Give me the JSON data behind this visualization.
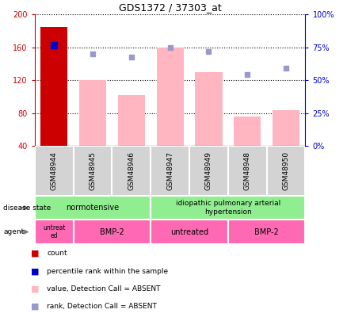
{
  "title": "GDS1372 / 37303_at",
  "samples": [
    "GSM48944",
    "GSM48945",
    "GSM48946",
    "GSM48947",
    "GSM48949",
    "GSM48948",
    "GSM48950"
  ],
  "bar_values_red": [
    185,
    0,
    0,
    0,
    0,
    0,
    0
  ],
  "bar_values_pink": [
    0,
    120,
    102,
    160,
    130,
    76,
    84
  ],
  "rank_dots_blue_dark": [
    163,
    0,
    0,
    0,
    0,
    0,
    0
  ],
  "rank_dots_blue_light": [
    0,
    152,
    148,
    160,
    155,
    127,
    135
  ],
  "ylim_left": [
    40,
    200
  ],
  "ylim_right": [
    0,
    100
  ],
  "yticks_left": [
    40,
    80,
    120,
    160,
    200
  ],
  "yticks_right": [
    0,
    25,
    50,
    75,
    100
  ],
  "bar_color_red": "#CC0000",
  "bar_color_pink": "#FFB6C1",
  "dot_color_dark_blue": "#0000CD",
  "dot_color_light_blue": "#9999CC",
  "plot_bg_color": "#FFFFFF",
  "left_axis_color": "#CC0000",
  "right_axis_color": "#0000CC",
  "disease_color": "#90EE90",
  "agent_color": "#FF69B4",
  "sample_box_color": "#D3D3D3",
  "legend_colors": [
    "#CC0000",
    "#0000CD",
    "#FFB6C1",
    "#9999CC"
  ],
  "legend_labels": [
    "count",
    "percentile rank within the sample",
    "value, Detection Call = ABSENT",
    "rank, Detection Call = ABSENT"
  ]
}
